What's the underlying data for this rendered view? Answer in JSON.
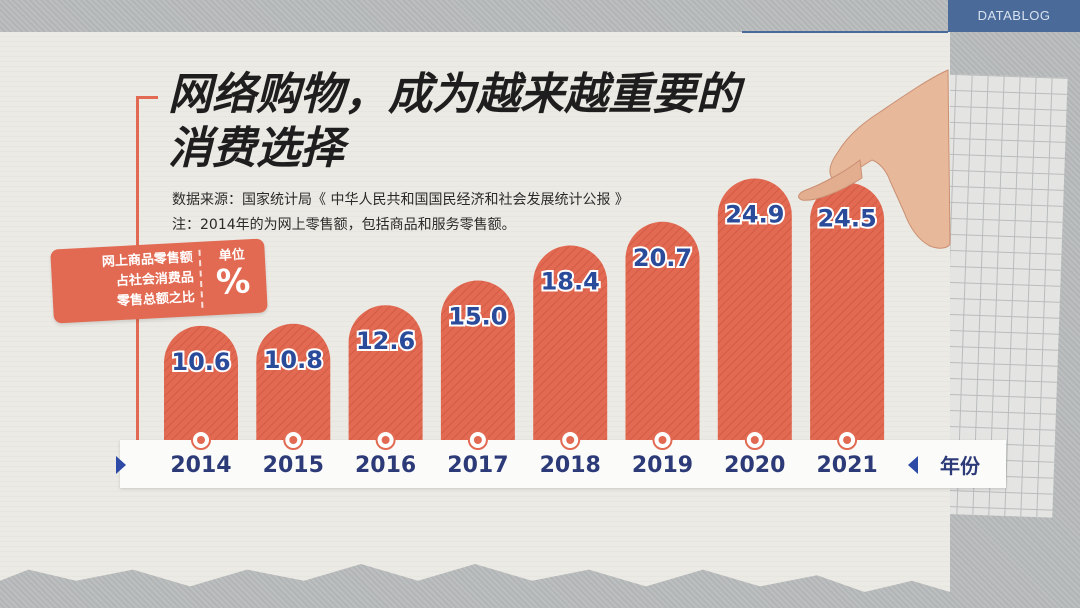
{
  "brand": "DATABLOG",
  "title_lines": [
    "网络购物，成为越来越重要的",
    "消费选择"
  ],
  "notes": {
    "source": "数据来源：国家统计局《 中华人民共和国国民经济和社会发展统计公报 》",
    "footnote": "注：2014年的为网上零售额，包括商品和服务零售额。"
  },
  "ylabel_box": {
    "lines": [
      "网上商品零售额",
      "占社会消费品",
      "零售总额之比"
    ],
    "unit_label": "单位",
    "unit": "%"
  },
  "colors": {
    "bar": "#e26a52",
    "label": "#2a4a9a",
    "year": "#2c3b78",
    "accent": "#e26a52",
    "brand": "#4a6b9a"
  },
  "chart_data": {
    "type": "bar",
    "categories": [
      "2014",
      "2015",
      "2016",
      "2017",
      "2018",
      "2019",
      "2020",
      "2021"
    ],
    "values": [
      10.6,
      10.8,
      12.6,
      15.0,
      18.4,
      20.7,
      24.9,
      24.5
    ],
    "value_labels": [
      "10.6",
      "10.8",
      "12.6",
      "15.0",
      "18.4",
      "20.7",
      "24.9",
      "24.5"
    ],
    "xlabel": "年份",
    "ylabel": "网上商品零售额占社会消费品零售总额之比",
    "unit": "%",
    "grid": false,
    "legend": "none"
  }
}
